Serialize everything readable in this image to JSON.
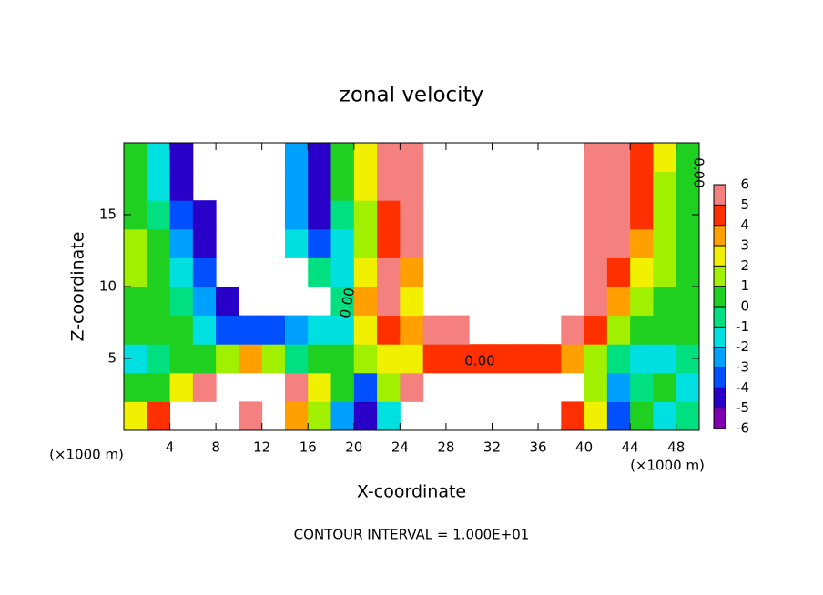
{
  "chart_data": {
    "type": "heatmap",
    "title": "zonal velocity",
    "x_label": "X-coordinate",
    "y_label": "Z-coordinate",
    "x_unit": "(×1000 m)",
    "y_unit": "(×1000 m)",
    "footnote": "CONTOUR INTERVAL = 1.000E+01",
    "contour_labels": [
      "0.00",
      "0.00",
      "0.00"
    ],
    "xlim": [
      0,
      50
    ],
    "ylim": [
      0,
      20
    ],
    "xticks": [
      4,
      8,
      12,
      16,
      20,
      24,
      28,
      32,
      36,
      40,
      44,
      48
    ],
    "yticks": [
      5,
      10,
      15
    ],
    "colorbar_ticks": [
      6,
      5,
      4,
      3,
      2,
      1,
      0,
      -1,
      -2,
      -3,
      -4,
      -5,
      -6
    ],
    "colors": [
      "#8000b0",
      "#2800c8",
      "#0050ff",
      "#00a0ff",
      "#00e0e0",
      "#00e080",
      "#20d020",
      "#a0f000",
      "#f0f000",
      "#ffa000",
      "#ff3000",
      "#f58080"
    ],
    "x": [
      1,
      3,
      5,
      7,
      9,
      11,
      13,
      15,
      17,
      19,
      21,
      23,
      25,
      27,
      29,
      31,
      33,
      35,
      37,
      39,
      41,
      43,
      45,
      47,
      49
    ],
    "y": [
      1,
      3,
      5,
      7,
      9,
      11,
      13,
      15,
      17,
      19
    ],
    "z": [
      [
        2,
        4,
        null,
        null,
        null,
        6,
        null,
        3,
        1,
        -3,
        -5,
        -2,
        null,
        null,
        null,
        null,
        null,
        null,
        null,
        4,
        2,
        -4,
        0,
        -2,
        -1
      ],
      [
        0,
        0,
        2,
        5,
        null,
        null,
        null,
        5,
        2,
        0,
        -4,
        1,
        5,
        null,
        null,
        null,
        null,
        null,
        null,
        null,
        1,
        -3,
        -1,
        0,
        -2
      ],
      [
        -2,
        -1,
        0,
        0,
        1,
        3,
        1,
        -1,
        0,
        0,
        1,
        2,
        2,
        4,
        4,
        4,
        4,
        4,
        4,
        3,
        1,
        -1,
        -2,
        -2,
        -1
      ],
      [
        0,
        0.5,
        0.5,
        -2,
        -4,
        -4,
        -4,
        -3,
        -2,
        -2,
        2,
        4,
        3,
        5,
        6,
        null,
        null,
        null,
        null,
        6,
        4,
        1,
        0.5,
        0,
        0
      ],
      [
        0.5,
        0.5,
        -1,
        -3,
        -5,
        null,
        null,
        null,
        null,
        -1,
        3,
        6,
        2,
        null,
        null,
        null,
        null,
        null,
        null,
        null,
        5,
        3,
        1,
        0.5,
        0.5
      ],
      [
        1,
        0.5,
        -2,
        -4,
        null,
        null,
        null,
        null,
        -1,
        -2,
        2,
        5,
        3,
        null,
        null,
        null,
        null,
        null,
        null,
        null,
        5,
        4,
        2,
        1,
        0.5
      ],
      [
        1,
        0,
        -3,
        -5,
        null,
        null,
        null,
        -2,
        -4,
        -2,
        1,
        4,
        5,
        null,
        null,
        null,
        null,
        null,
        null,
        null,
        6,
        5,
        3,
        1,
        0.5
      ],
      [
        0.5,
        -1,
        -4,
        -5,
        null,
        null,
        null,
        -3,
        -5,
        -1,
        1,
        4,
        5,
        null,
        null,
        null,
        null,
        null,
        null,
        null,
        6,
        5,
        4,
        1.5,
        0.5
      ],
      [
        0.5,
        -2,
        -5,
        null,
        null,
        null,
        null,
        -3,
        -5,
        0,
        2,
        5,
        6,
        null,
        null,
        null,
        null,
        null,
        null,
        null,
        6,
        5,
        4,
        1.5,
        0.5
      ],
      [
        0.5,
        -2,
        -5,
        null,
        null,
        null,
        null,
        -3,
        -5,
        0,
        2,
        5,
        6,
        null,
        null,
        null,
        null,
        null,
        null,
        null,
        6,
        5,
        4,
        2,
        0.5
      ]
    ]
  }
}
